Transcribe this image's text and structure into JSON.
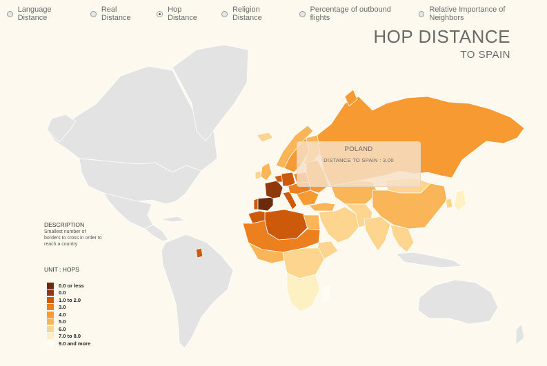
{
  "tabs": [
    {
      "label": "Language Distance",
      "selected": false
    },
    {
      "label": "Real Distance",
      "selected": false
    },
    {
      "label": "Hop Distance",
      "selected": true
    },
    {
      "label": "Religion Distance",
      "selected": false
    },
    {
      "label": "Percentage of outbound flights",
      "selected": false
    },
    {
      "label": "Relative Importance of Neighbors",
      "selected": false
    }
  ],
  "title": {
    "main": "HOP DISTANCE",
    "sub": "TO SPAIN"
  },
  "description": {
    "heading": "DESCRIPTION",
    "text": "Smallest number of borders to cross in order to reach a country"
  },
  "unit_label": "UNIT : HOPS",
  "legend": [
    {
      "label": "0.0 or less",
      "color": "#6b2a0c"
    },
    {
      "label": "0.0",
      "color": "#8f3a0c"
    },
    {
      "label": "1.0 to 2.0",
      "color": "#cc5a0a"
    },
    {
      "label": "3.0",
      "color": "#ec7f1e"
    },
    {
      "label": "4.0",
      "color": "#f89a32"
    },
    {
      "label": "5.0",
      "color": "#fbb559"
    },
    {
      "label": "6.0",
      "color": "#fdd58e"
    },
    {
      "label": "7.0 to 8.0",
      "color": "#fdf0c2"
    },
    {
      "label": "9.0 and more",
      "color": "#fffdf3"
    }
  ],
  "tooltip": {
    "country": "POLAND",
    "value_text": "DISTANCE TO SPAIN : 3.00"
  },
  "colors": {
    "background": "#fdf9ee",
    "no_data": "#e3e3e3",
    "border": "#ffffff"
  }
}
